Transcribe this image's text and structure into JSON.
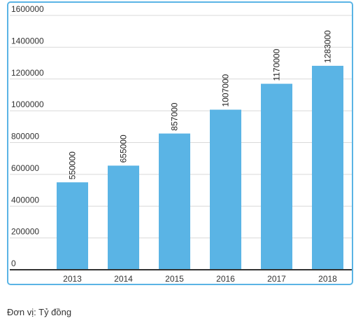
{
  "note": "Đơn vị: Tỷ đồng",
  "colors": {
    "bar": "#5ab4e5",
    "grid": "#d9d9d9",
    "axis": "#333333",
    "frame": "#5ab4e5"
  },
  "chart_data": {
    "type": "bar",
    "title": "",
    "xlabel": "",
    "ylabel": "",
    "categories": [
      "2013",
      "2014",
      "2015",
      "2016",
      "2017",
      "2018"
    ],
    "values": [
      550000,
      655000,
      857000,
      1007000,
      1170000,
      1283000
    ],
    "ylim": [
      0,
      1600000
    ],
    "yticks": [
      0,
      200000,
      400000,
      600000,
      800000,
      1000000,
      1200000,
      1400000,
      1600000
    ],
    "grid": true,
    "legend": "none",
    "data_labels": "rotated-vertical"
  }
}
